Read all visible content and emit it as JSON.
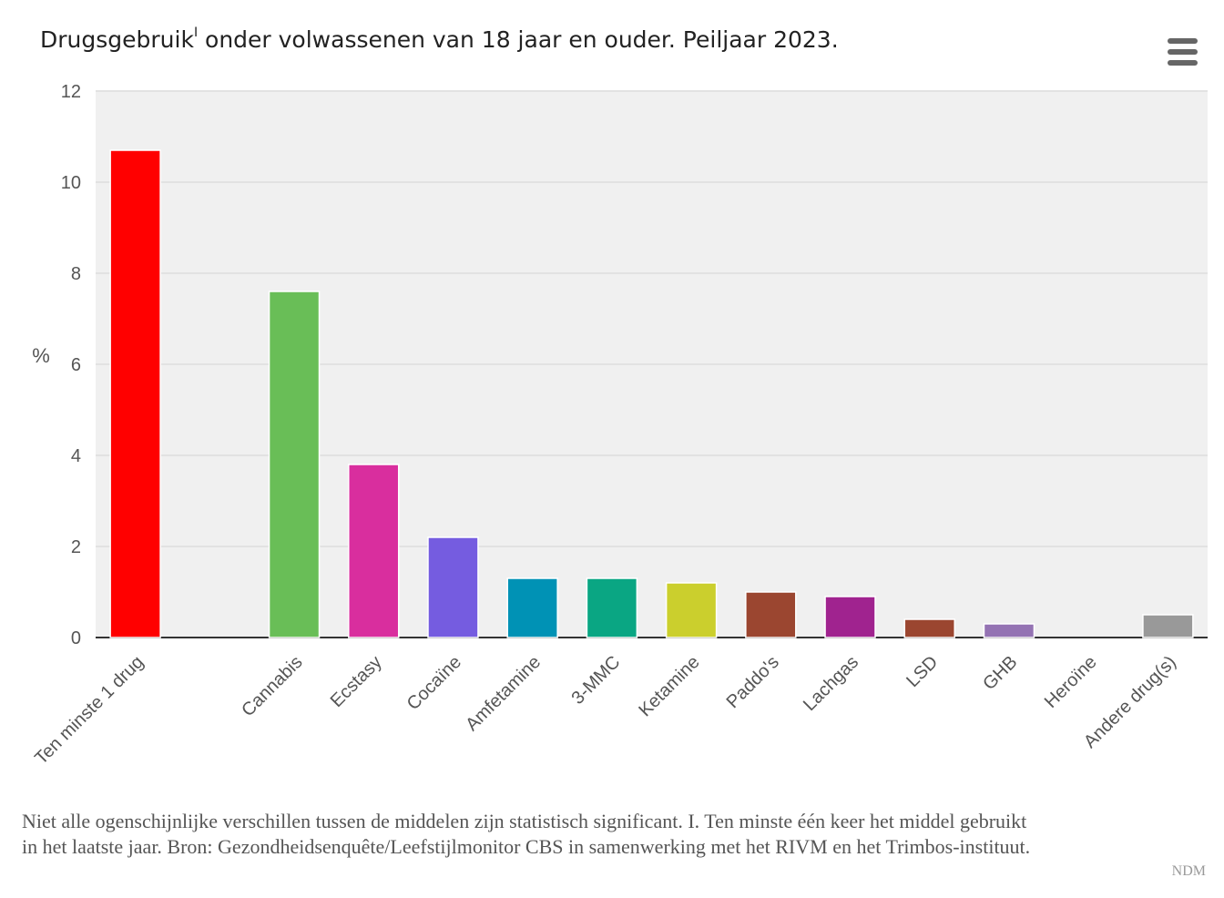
{
  "title": {
    "main": "Drugsgebruik",
    "superscript": "I",
    "rest": " onder volwassenen van 18 jaar en ouder. Peiljaar 2023."
  },
  "menu": {
    "icon": "hamburger-menu-icon"
  },
  "chart_data": {
    "type": "bar",
    "title": "Drugsgebruik onder volwassenen van 18 jaar en ouder. Peiljaar 2023.",
    "ylabel": "%",
    "xlabel": "",
    "ylim": [
      0,
      12
    ],
    "yticks": [
      "0",
      "2",
      "4",
      "6",
      "8",
      "10",
      "12"
    ],
    "grid": true,
    "categories": [
      "Ten minste 1 drug",
      "",
      "Cannabis",
      "Ecstasy",
      "Cocaïne",
      "Amfetamine",
      "3-MMC",
      "Ketamine",
      "Paddo's",
      "Lachgas",
      "LSD",
      "GHB",
      "Heroïne",
      "Andere drug(s)"
    ],
    "values": [
      10.7,
      null,
      7.6,
      3.8,
      2.2,
      1.3,
      1.3,
      1.2,
      1.0,
      0.9,
      0.4,
      0.3,
      0.0,
      0.5
    ],
    "colors": [
      "#ff0000",
      null,
      "#69be57",
      "#d92e9e",
      "#755ce0",
      "#0092b5",
      "#0aa683",
      "#cbcf2d",
      "#9b4630",
      "#a0238f",
      "#9b4630",
      "#9473b3",
      "#999999",
      "#999999"
    ],
    "plot_background": "#f0f0f0",
    "grid_color": "#e2e2e2"
  },
  "footnote": {
    "line1": "Niet alle ogenschijnlijke verschillen tussen de middelen zijn statistisch significant. I. Ten minste één keer het middel gebruikt",
    "line2": "in het laatste jaar. Bron: Gezondheidsenquête/Leefstijlmonitor CBS in samenwerking met het RIVM en het Trimbos-instituut."
  },
  "credit": "NDM"
}
